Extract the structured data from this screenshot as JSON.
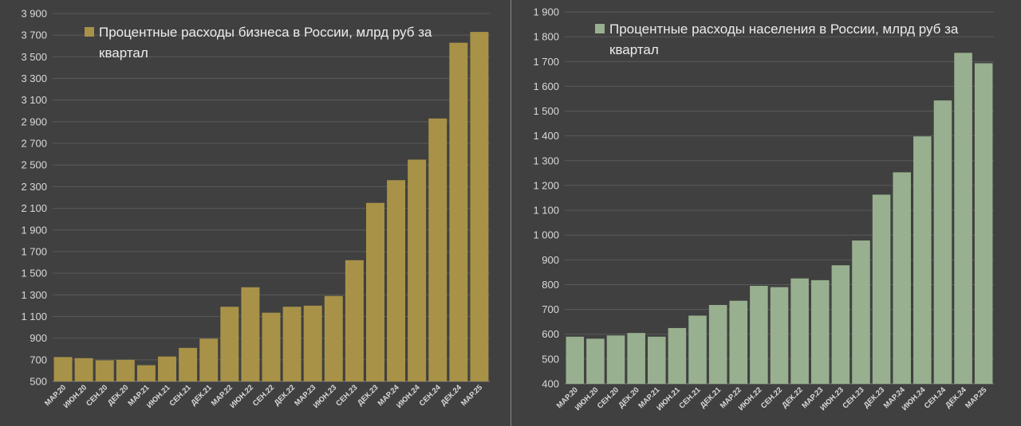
{
  "colors": {
    "background": "#404040",
    "divider": "#8a8a8a",
    "business_bar": "#a89248",
    "population_bar": "#98b08f",
    "grid": "#5a5a5a",
    "text": "#d9d9d9"
  },
  "chart_data": [
    {
      "type": "bar",
      "title": "",
      "xlabel": "",
      "ylabel": "",
      "grid": true,
      "legend_position": "top-left",
      "ylim": [
        500,
        3900
      ],
      "yticks": [
        500,
        700,
        900,
        1100,
        1300,
        1500,
        1700,
        1900,
        2100,
        2300,
        2500,
        2700,
        2900,
        3100,
        3300,
        3500,
        3700,
        3900
      ],
      "ytick_labels": [
        "500",
        "700",
        "900",
        "1 100",
        "1 300",
        "1 500",
        "1 700",
        "1 900",
        "2 100",
        "2 300",
        "2 500",
        "2 700",
        "2 900",
        "3 100",
        "3 300",
        "3 500",
        "3 700",
        "3 900"
      ],
      "categories": [
        "МАР.20",
        "ИЮН.20",
        "СЕН.20",
        "ДЕК.20",
        "МАР.21",
        "ИЮН.21",
        "СЕН.21",
        "ДЕК.21",
        "МАР.22",
        "ИЮН.22",
        "СЕН.22",
        "ДЕК.22",
        "МАР.23",
        "ИЮН.23",
        "СЕН.23",
        "ДЕК.23",
        "МАР.24",
        "ИЮН.24",
        "СЕН.24",
        "ДЕК.24",
        "МАР.25"
      ],
      "series": [
        {
          "name": "Процентные расходы бизнеса в России, млрд руб за квартал",
          "color": "#a89248",
          "values": [
            725,
            715,
            695,
            700,
            650,
            730,
            810,
            895,
            1190,
            1370,
            1135,
            1190,
            1200,
            1290,
            1620,
            2150,
            2360,
            2550,
            2930,
            3630,
            3730
          ]
        }
      ]
    },
    {
      "type": "bar",
      "title": "",
      "xlabel": "",
      "ylabel": "",
      "grid": true,
      "legend_position": "top-left",
      "ylim": [
        400,
        1900
      ],
      "yticks": [
        400,
        500,
        600,
        700,
        800,
        900,
        1000,
        1100,
        1200,
        1300,
        1400,
        1500,
        1600,
        1700,
        1800,
        1900
      ],
      "ytick_labels": [
        "400",
        "500",
        "600",
        "700",
        "800",
        "900",
        "1 000",
        "1 100",
        "1 200",
        "1 300",
        "1 400",
        "1 500",
        "1 600",
        "1 700",
        "1 800",
        "1 900"
      ],
      "categories": [
        "МАР.20",
        "ИЮН.20",
        "СЕН.20",
        "ДЕК.20",
        "МАР.21",
        "ИЮН.21",
        "СЕН.21",
        "ДЕК.21",
        "МАР.22",
        "ИЮН.22",
        "СЕН.22",
        "ДЕК.22",
        "МАР.23",
        "ИЮН.23",
        "СЕН.23",
        "ДЕК.23",
        "МАР.24",
        "ИЮН.24",
        "СЕН.24",
        "ДЕК.24",
        "МАР.25"
      ],
      "series": [
        {
          "name": "Процентные расходы населения в России, млрд руб за квартал",
          "color": "#98b08f",
          "values": [
            590,
            582,
            595,
            605,
            590,
            625,
            675,
            718,
            735,
            795,
            790,
            825,
            818,
            878,
            978,
            1163,
            1253,
            1398,
            1543,
            1735,
            1693
          ]
        }
      ]
    }
  ]
}
